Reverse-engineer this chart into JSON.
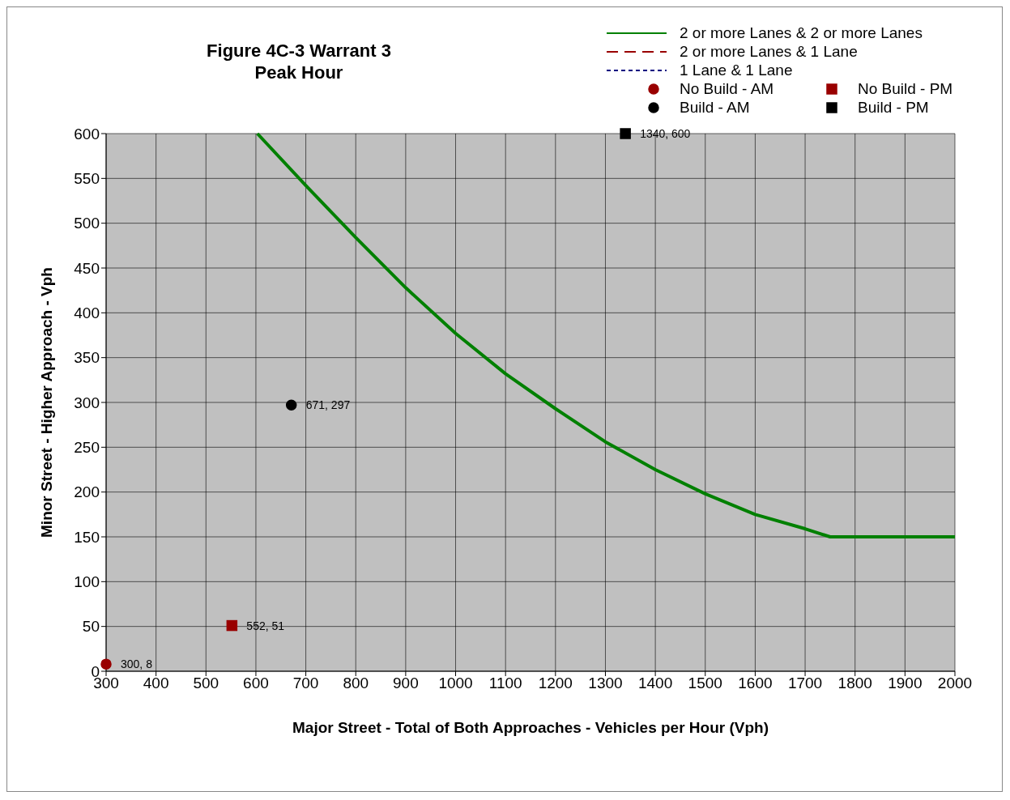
{
  "chart_data": {
    "type": "line",
    "title": "Figure 4C-3  Warrant 3\nPeak Hour",
    "xlabel": "Major Street - Total of Both Approaches - Vehicles per Hour (Vph)",
    "ylabel": "Minor Street - Higher Approach - Vph",
    "xlim": [
      300,
      2000
    ],
    "xticks": [
      300,
      400,
      500,
      600,
      700,
      800,
      900,
      1000,
      1100,
      1200,
      1300,
      1400,
      1500,
      1600,
      1700,
      1800,
      1900,
      2000
    ],
    "ylim": [
      0,
      600
    ],
    "yticks": [
      0,
      50,
      100,
      150,
      200,
      250,
      300,
      350,
      400,
      450,
      500,
      550,
      600
    ],
    "grid": true,
    "legend": "top right",
    "series": [
      {
        "name": "2 or more Lanes & 2 or more Lanes",
        "color": "#008000",
        "line_style": "solid",
        "x": [
          603,
          700,
          800,
          900,
          1000,
          1100,
          1200,
          1300,
          1400,
          1500,
          1600,
          1700,
          1750,
          1770,
          2000
        ],
        "values": [
          600,
          542,
          484,
          428,
          377,
          332,
          293,
          256,
          225,
          198,
          175,
          159,
          150,
          150,
          150
        ]
      },
      {
        "name": "2 or more Lanes & 1 Lane",
        "color": "#990000",
        "line_style": "dashed"
      },
      {
        "name": "1 Lane & 1 Lane",
        "color": "#000080",
        "line_style": "dotted"
      },
      {
        "name": "No Build  - AM",
        "type": "scatter",
        "color": "#990000",
        "marker": "circle",
        "x": [
          300
        ],
        "values": [
          8
        ],
        "value_labels": [
          "300, 8"
        ]
      },
      {
        "name": "No Build  - PM",
        "type": "scatter",
        "color": "#990000",
        "marker": "square",
        "x": [
          552
        ],
        "values": [
          51
        ],
        "value_labels": [
          "552, 51"
        ]
      },
      {
        "name": "Build - AM",
        "type": "scatter",
        "color": "#000000",
        "marker": "circle",
        "x": [
          671
        ],
        "values": [
          297
        ],
        "value_labels": [
          "671, 297"
        ]
      },
      {
        "name": "Build - PM",
        "type": "scatter",
        "color": "#000000",
        "marker": "square",
        "x": [
          1340
        ],
        "values": [
          600
        ],
        "value_labels": [
          "1340, 600"
        ]
      }
    ]
  }
}
